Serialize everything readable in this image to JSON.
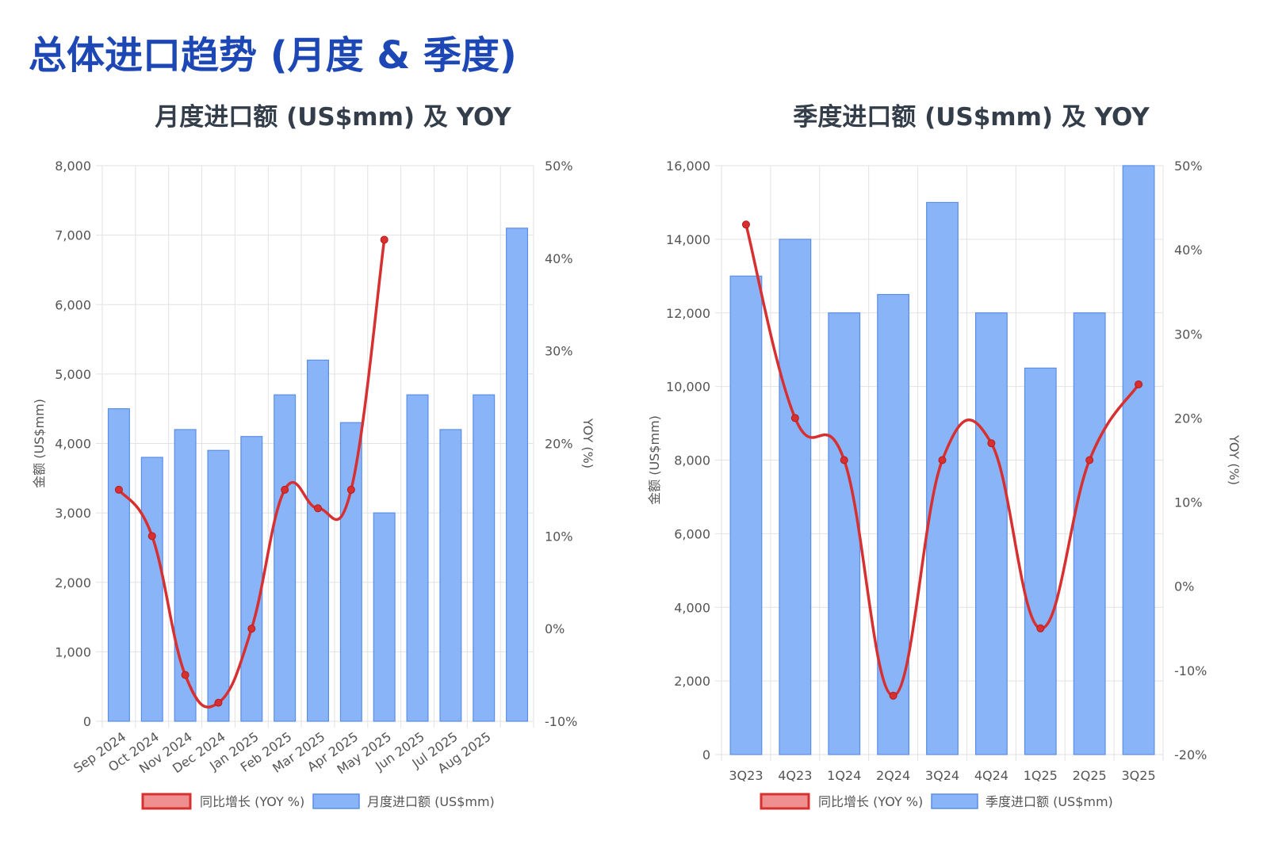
{
  "page": {
    "title": "总体进口趋势 (月度 & 季度)"
  },
  "colors": {
    "bar_fill": "#8ab4f8",
    "bar_stroke": "#5b8ee6",
    "line": "#d63031",
    "title": "#1c47b4"
  },
  "chart_data": [
    {
      "type": "bar",
      "title": "月度进口额 (US$mm) 及 YOY",
      "categories": [
        "Sep 2024",
        "Oct 2024",
        "Nov 2024",
        "Dec 2024",
        "Jan 2025",
        "Feb 2025",
        "Mar 2025",
        "Apr 2025",
        "May 2025",
        "Jun 2025",
        "Jul 2025",
        "Aug 2025",
        ""
      ],
      "series": [
        {
          "name": "月度进口额 (US$mm)",
          "type": "bar",
          "axis": "left",
          "values": [
            4500,
            3800,
            4200,
            3900,
            4100,
            4700,
            5200,
            4300,
            3000,
            4700,
            4200,
            4700,
            7100
          ]
        },
        {
          "name": "同比增长 (YOY %)",
          "type": "line",
          "axis": "right",
          "values": [
            15,
            10,
            -5,
            -8,
            0,
            15,
            13,
            15,
            42,
            null,
            null,
            null,
            null
          ]
        }
      ],
      "ylabel": "金额 (US$mm)",
      "y2label": "YOY (%)",
      "ylim": [
        0,
        8000
      ],
      "y_ticks": [
        "8,000",
        "7,000",
        "6,000",
        "5,000",
        "4,000",
        "3,000",
        "2,000",
        "1,000",
        "0"
      ],
      "y2lim": [
        -10,
        50
      ],
      "y2_ticks": [
        "50%",
        "40%",
        "30%",
        "20%",
        "10%",
        "0%",
        "-10%"
      ],
      "grid": true,
      "legend": "bottom"
    },
    {
      "type": "bar",
      "title": "季度进口额 (US$mm) 及 YOY",
      "categories": [
        "3Q23",
        "4Q23",
        "1Q24",
        "2Q24",
        "3Q24",
        "4Q24",
        "1Q25",
        "2Q25",
        "3Q25"
      ],
      "series": [
        {
          "name": "季度进口额 (US$mm)",
          "type": "bar",
          "axis": "left",
          "values": [
            13000,
            14000,
            12000,
            12500,
            15000,
            12000,
            10500,
            12000,
            16000
          ]
        },
        {
          "name": "同比增长 (YOY %)",
          "type": "line",
          "axis": "right",
          "values": [
            43,
            20,
            15,
            -13,
            15,
            17,
            -5,
            15,
            24
          ]
        }
      ],
      "ylabel": "金额 (US$mm)",
      "y2label": "YOY (%)",
      "ylim": [
        0,
        16000
      ],
      "y_ticks": [
        "16,000",
        "14,000",
        "12,000",
        "10,000",
        "8,000",
        "6,000",
        "4,000",
        "2,000",
        "0"
      ],
      "y2lim": [
        -20,
        50
      ],
      "y2_ticks": [
        "50%",
        "40%",
        "30%",
        "20%",
        "10%",
        "0%",
        "-10%",
        "-20%"
      ],
      "grid": true,
      "legend": "bottom"
    }
  ]
}
